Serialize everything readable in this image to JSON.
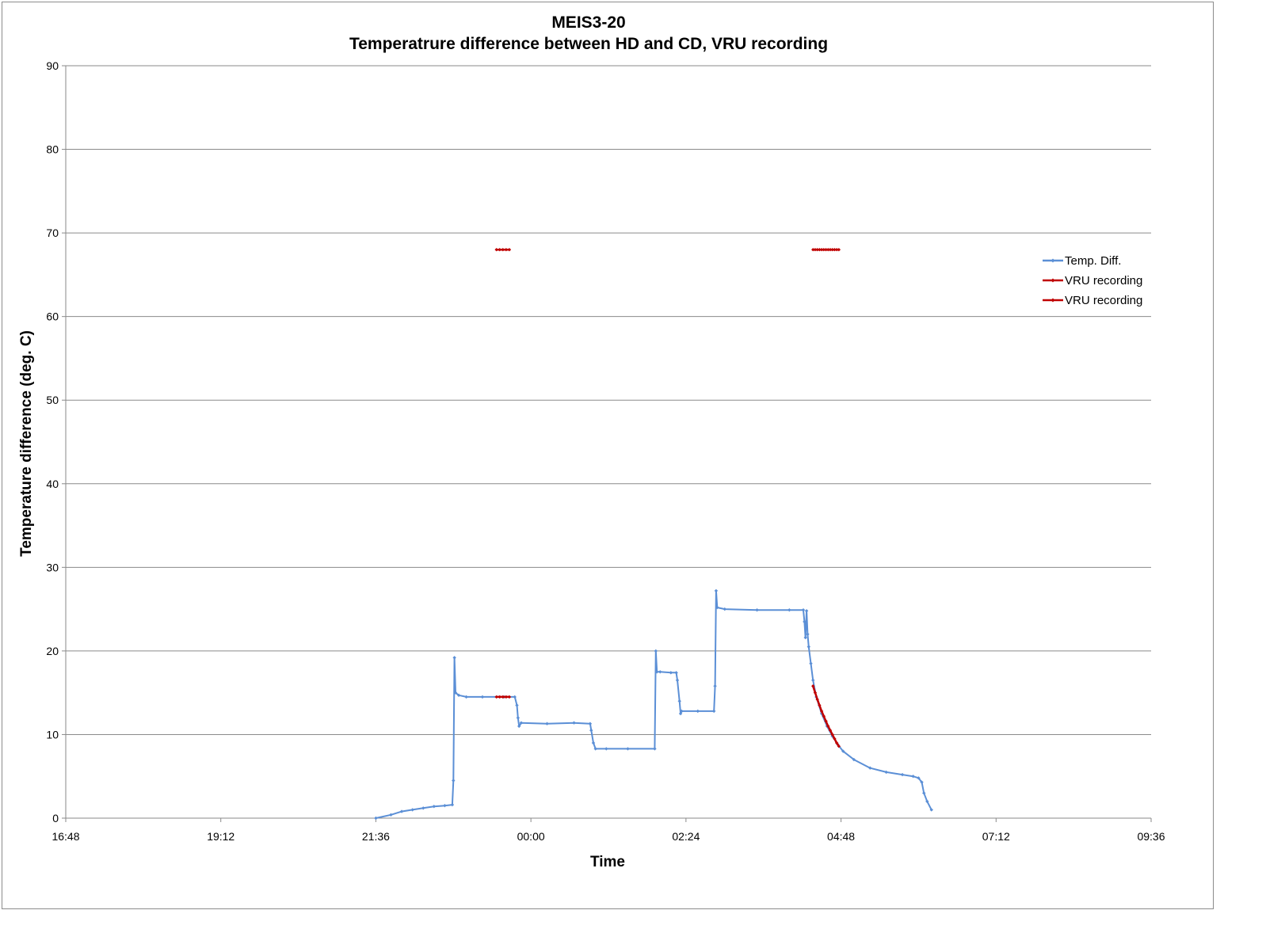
{
  "chart_data": {
    "type": "line",
    "title": "MEIS3-20",
    "subtitle": "Temperatrure difference between HD and CD, VRU recording",
    "xlabel": "Time",
    "ylabel": "Temperature difference (deg. C)",
    "xlim": [
      "16:48",
      "09:36"
    ],
    "x_ticks": [
      "16:48",
      "19:12",
      "21:36",
      "00:00",
      "02:24",
      "04:48",
      "07:12",
      "09:36"
    ],
    "ylim": [
      0,
      90
    ],
    "y_ticks": [
      0,
      10,
      20,
      30,
      40,
      50,
      60,
      70,
      80,
      90
    ],
    "grid": "horizontal",
    "legend_position": "right",
    "series": [
      {
        "name": "Temp. Diff.",
        "color": "#5b8fd6",
        "marker": "small-diamond",
        "points": [
          [
            "21:36",
            0.0
          ],
          [
            "21:50",
            0.4
          ],
          [
            "22:00",
            0.8
          ],
          [
            "22:10",
            1.0
          ],
          [
            "22:20",
            1.2
          ],
          [
            "22:30",
            1.4
          ],
          [
            "22:40",
            1.5
          ],
          [
            "22:47",
            1.6
          ],
          [
            "22:48",
            4.5
          ],
          [
            "22:49",
            19.2
          ],
          [
            "22:50",
            15.0
          ],
          [
            "22:53",
            14.7
          ],
          [
            "23:00",
            14.5
          ],
          [
            "23:15",
            14.5
          ],
          [
            "23:35",
            14.5
          ],
          [
            "23:45",
            14.5
          ],
          [
            "23:47",
            13.5
          ],
          [
            "23:48",
            12.0
          ],
          [
            "23:49",
            11.0
          ],
          [
            "23:51",
            11.4
          ],
          [
            "00:15",
            11.3
          ],
          [
            "00:40",
            11.4
          ],
          [
            "00:55",
            11.3
          ],
          [
            "00:56",
            10.5
          ],
          [
            "00:58",
            9.0
          ],
          [
            "01:00",
            8.3
          ],
          [
            "01:10",
            8.3
          ],
          [
            "01:30",
            8.3
          ],
          [
            "01:55",
            8.3
          ],
          [
            "01:56",
            20.0
          ],
          [
            "01:57",
            17.5
          ],
          [
            "02:00",
            17.5
          ],
          [
            "02:10",
            17.4
          ],
          [
            "02:15",
            17.4
          ],
          [
            "02:16",
            16.5
          ],
          [
            "02:18",
            14.0
          ],
          [
            "02:19",
            12.5
          ],
          [
            "02:20",
            12.8
          ],
          [
            "02:35",
            12.8
          ],
          [
            "02:50",
            12.8
          ],
          [
            "02:51",
            15.8
          ],
          [
            "02:52",
            27.2
          ],
          [
            "02:53",
            25.2
          ],
          [
            "03:00",
            25.0
          ],
          [
            "03:30",
            24.9
          ],
          [
            "04:00",
            24.9
          ],
          [
            "04:13",
            24.9
          ],
          [
            "04:14",
            23.5
          ],
          [
            "04:15",
            21.6
          ],
          [
            "04:16",
            24.8
          ],
          [
            "04:17",
            22.0
          ],
          [
            "04:18",
            20.5
          ],
          [
            "04:20",
            18.5
          ],
          [
            "04:22",
            16.5
          ],
          [
            "04:25",
            14.5
          ],
          [
            "04:30",
            12.5
          ],
          [
            "04:35",
            11.0
          ],
          [
            "04:40",
            9.8
          ],
          [
            "04:45",
            8.8
          ],
          [
            "04:50",
            8.0
          ],
          [
            "05:00",
            7.0
          ],
          [
            "05:15",
            6.0
          ],
          [
            "05:30",
            5.5
          ],
          [
            "05:45",
            5.2
          ],
          [
            "05:55",
            5.0
          ],
          [
            "06:00",
            4.8
          ],
          [
            "06:03",
            4.3
          ],
          [
            "06:05",
            3.0
          ],
          [
            "06:08",
            2.0
          ],
          [
            "06:12",
            1.0
          ]
        ]
      },
      {
        "name": "VRU recording",
        "color": "#c00000",
        "marker": "small-diamond",
        "points": [
          [
            "23:28",
            14.5
          ],
          [
            "23:31",
            14.5
          ],
          [
            "23:34",
            14.5
          ],
          [
            "23:37",
            14.5
          ],
          [
            "23:40",
            14.5
          ]
        ]
      },
      {
        "name": "VRU recording",
        "color": "#c00000",
        "marker": "small-diamond",
        "points": [
          [
            "04:22",
            15.8
          ],
          [
            "04:24",
            15.0
          ],
          [
            "04:26",
            14.2
          ],
          [
            "04:28",
            13.5
          ],
          [
            "04:30",
            12.8
          ],
          [
            "04:32",
            12.2
          ],
          [
            "04:34",
            11.6
          ],
          [
            "04:36",
            11.0
          ],
          [
            "04:38",
            10.5
          ],
          [
            "04:40",
            10.0
          ],
          [
            "04:42",
            9.5
          ],
          [
            "04:44",
            9.0
          ],
          [
            "04:46",
            8.6
          ]
        ]
      },
      {
        "name": "",
        "color": "#c00000",
        "marker": "small-diamond",
        "points": [
          [
            "23:28",
            68.0
          ],
          [
            "23:31",
            68.0
          ],
          [
            "23:34",
            68.0
          ],
          [
            "23:37",
            68.0
          ],
          [
            "23:40",
            68.0
          ]
        ]
      },
      {
        "name": "",
        "color": "#c00000",
        "marker": "small-diamond",
        "points": [
          [
            "04:22",
            68.0
          ],
          [
            "04:24",
            68.0
          ],
          [
            "04:26",
            68.0
          ],
          [
            "04:28",
            68.0
          ],
          [
            "04:30",
            68.0
          ],
          [
            "04:32",
            68.0
          ],
          [
            "04:34",
            68.0
          ],
          [
            "04:36",
            68.0
          ],
          [
            "04:38",
            68.0
          ],
          [
            "04:40",
            68.0
          ],
          [
            "04:42",
            68.0
          ],
          [
            "04:44",
            68.0
          ],
          [
            "04:46",
            68.0
          ]
        ]
      }
    ]
  }
}
